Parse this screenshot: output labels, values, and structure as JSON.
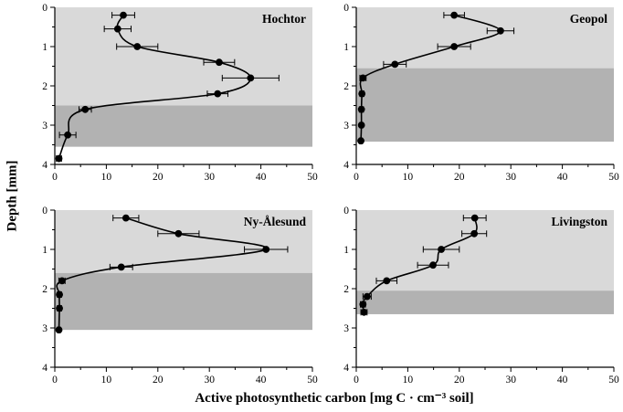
{
  "figure": {
    "y_axis_label": "Depth [mm]",
    "x_axis_label": "Active photosynthetic carbon  [mg C · cm⁻³ soil]"
  },
  "colors": {
    "zone_upper": "#d9d9d9",
    "zone_lower": "#b2b2b2",
    "line": "#000000",
    "marker": "#000000",
    "axis": "#000000"
  },
  "chart_data": [
    {
      "type": "line",
      "title": "Hochtor",
      "x_label": "Active photosynthetic carbon [mg C · cm⁻³ soil]",
      "y_label": "Depth [mm]",
      "xlim": [
        0,
        50
      ],
      "ylim": [
        0,
        4
      ],
      "y_inverted": true,
      "x_major_ticks": [
        0,
        10,
        20,
        30,
        40,
        50
      ],
      "y_major_ticks": [
        0,
        1,
        2,
        3,
        4
      ],
      "x_minor_step": 5,
      "y_minor_step": 0.5,
      "zones": {
        "upper_depth_range": [
          0,
          2.5
        ],
        "lower_depth_range": [
          2.5,
          3.55
        ]
      },
      "points": [
        {
          "depth": 0.2,
          "value": 13.3,
          "err": 2.2
        },
        {
          "depth": 0.55,
          "value": 12.2,
          "err": 2.6
        },
        {
          "depth": 1.0,
          "value": 16.0,
          "err": 4.0
        },
        {
          "depth": 1.4,
          "value": 31.9,
          "err": 3.0
        },
        {
          "depth": 1.8,
          "value": 38.0,
          "err": 5.5
        },
        {
          "depth": 2.2,
          "value": 31.6,
          "err": 2.0
        },
        {
          "depth": 2.6,
          "value": 5.9,
          "err": 1.2
        },
        {
          "depth": 3.25,
          "value": 2.5,
          "err": 1.6
        },
        {
          "depth": 3.85,
          "value": 0.8,
          "err": 0.5
        }
      ]
    },
    {
      "type": "line",
      "title": "Geopol",
      "x_label": "Active photosynthetic carbon [mg C · cm⁻³ soil]",
      "y_label": "Depth [mm]",
      "xlim": [
        0,
        50
      ],
      "ylim": [
        0,
        4
      ],
      "y_inverted": true,
      "x_major_ticks": [
        0,
        10,
        20,
        30,
        40,
        50
      ],
      "y_major_ticks": [
        0,
        1,
        2,
        3,
        4
      ],
      "x_minor_step": 5,
      "y_minor_step": 0.5,
      "zones": {
        "upper_depth_range": [
          0,
          1.55
        ],
        "lower_depth_range": [
          1.55,
          3.42
        ]
      },
      "points": [
        {
          "depth": 0.2,
          "value": 19.0,
          "err": 2.0
        },
        {
          "depth": 0.6,
          "value": 28.0,
          "err": 2.6
        },
        {
          "depth": 1.0,
          "value": 19.0,
          "err": 3.2
        },
        {
          "depth": 1.45,
          "value": 7.5,
          "err": 2.2
        },
        {
          "depth": 1.8,
          "value": 1.3,
          "err": 0.6
        },
        {
          "depth": 2.2,
          "value": 1.1,
          "err": 0.4
        },
        {
          "depth": 2.6,
          "value": 1.0,
          "err": 0.4
        },
        {
          "depth": 3.0,
          "value": 1.0,
          "err": 0.3
        },
        {
          "depth": 3.4,
          "value": 0.9,
          "err": 0.3
        }
      ]
    },
    {
      "type": "line",
      "title": "Ny-Ålesund",
      "x_label": "Active photosynthetic carbon [mg C · cm⁻³ soil]",
      "y_label": "Depth [mm]",
      "xlim": [
        0,
        50
      ],
      "ylim": [
        0,
        4
      ],
      "y_inverted": true,
      "x_major_ticks": [
        0,
        10,
        20,
        30,
        40,
        50
      ],
      "y_major_ticks": [
        0,
        1,
        2,
        3,
        4
      ],
      "x_minor_step": 5,
      "y_minor_step": 0.5,
      "zones": {
        "upper_depth_range": [
          0,
          1.6
        ],
        "lower_depth_range": [
          1.6,
          3.05
        ]
      },
      "points": [
        {
          "depth": 0.2,
          "value": 13.8,
          "err": 2.5
        },
        {
          "depth": 0.6,
          "value": 24.0,
          "err": 4.0
        },
        {
          "depth": 1.0,
          "value": 41.0,
          "err": 4.2
        },
        {
          "depth": 1.45,
          "value": 12.9,
          "err": 2.2
        },
        {
          "depth": 1.8,
          "value": 1.4,
          "err": 0.6
        },
        {
          "depth": 2.15,
          "value": 0.9,
          "err": 0.4
        },
        {
          "depth": 2.5,
          "value": 0.9,
          "err": 0.4
        },
        {
          "depth": 3.05,
          "value": 0.8,
          "err": 0.3
        }
      ]
    },
    {
      "type": "line",
      "title": "Livingston",
      "x_label": "Active photosynthetic carbon [mg C · cm⁻³ soil]",
      "y_label": "Depth [mm]",
      "xlim": [
        0,
        50
      ],
      "ylim": [
        0,
        4
      ],
      "y_inverted": true,
      "x_major_ticks": [
        0,
        10,
        20,
        30,
        40,
        50
      ],
      "y_major_ticks": [
        0,
        1,
        2,
        3,
        4
      ],
      "x_minor_step": 5,
      "y_minor_step": 0.5,
      "zones": {
        "upper_depth_range": [
          0,
          2.05
        ],
        "lower_depth_range": [
          2.05,
          2.65
        ]
      },
      "points": [
        {
          "depth": 0.2,
          "value": 23.0,
          "err": 2.2
        },
        {
          "depth": 0.6,
          "value": 22.9,
          "err": 2.4
        },
        {
          "depth": 1.0,
          "value": 16.5,
          "err": 3.5
        },
        {
          "depth": 1.4,
          "value": 14.9,
          "err": 3.0
        },
        {
          "depth": 1.8,
          "value": 5.9,
          "err": 2.0
        },
        {
          "depth": 2.2,
          "value": 2.1,
          "err": 0.8
        },
        {
          "depth": 2.4,
          "value": 1.3,
          "err": 0.5
        },
        {
          "depth": 2.6,
          "value": 1.5,
          "err": 0.6
        }
      ]
    }
  ]
}
